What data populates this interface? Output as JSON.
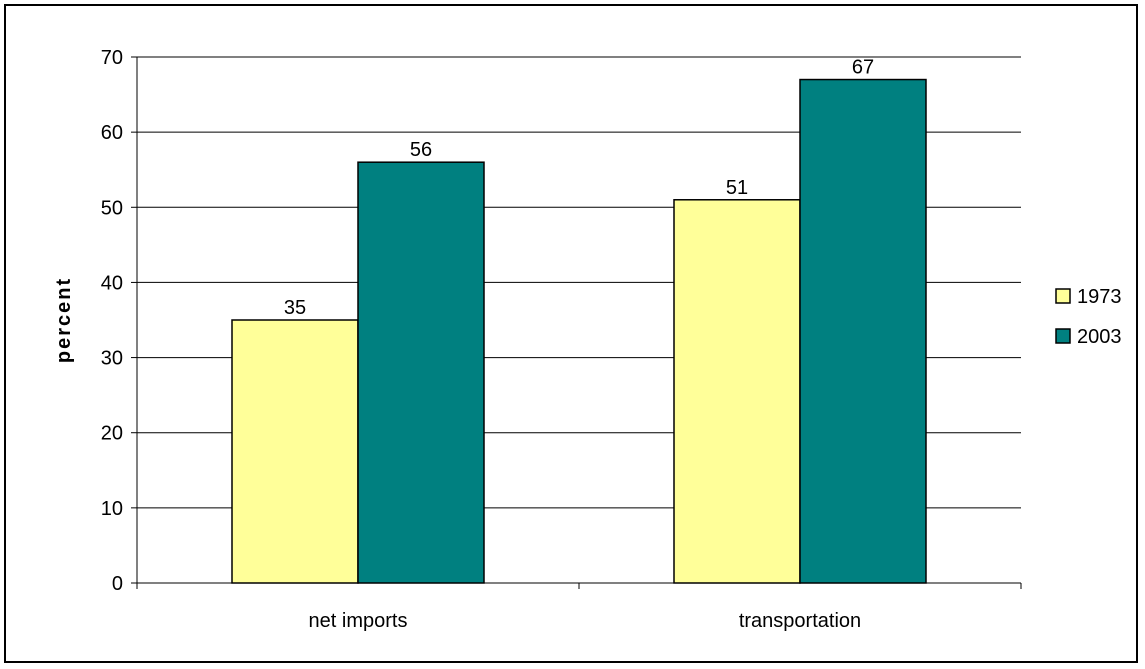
{
  "chart_data": {
    "type": "bar",
    "categories": [
      "net imports",
      "transportation"
    ],
    "series": [
      {
        "name": "1973",
        "values": [
          35,
          51
        ],
        "labels": [
          "35",
          "51"
        ],
        "color": "#FFFF99"
      },
      {
        "name": "2003",
        "values": [
          56,
          67
        ],
        "labels": [
          "56",
          "67"
        ],
        "color": "#008080"
      }
    ],
    "title": "",
    "xlabel": "",
    "ylabel": "percent",
    "ylim": [
      0,
      70
    ],
    "yticks": [
      "0",
      "10",
      "20",
      "30",
      "40",
      "50",
      "60",
      "70"
    ],
    "grid": true,
    "legend_position": "right"
  }
}
